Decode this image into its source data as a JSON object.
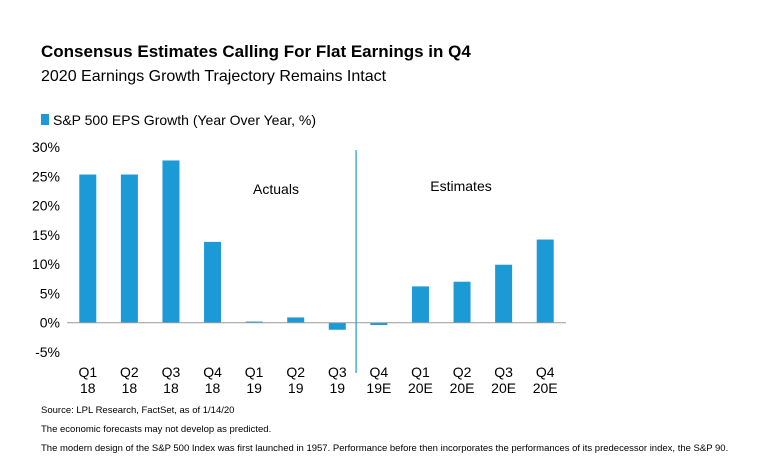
{
  "header": {
    "title": "Consensus Estimates Calling For Flat Earnings in Q4",
    "subtitle": "2020 Earnings Growth Trajectory Remains Intact"
  },
  "chart_data": {
    "type": "bar",
    "categories": [
      [
        "Q1",
        "18"
      ],
      [
        "Q2",
        "18"
      ],
      [
        "Q3",
        "18"
      ],
      [
        "Q4",
        "18"
      ],
      [
        "Q1",
        "19"
      ],
      [
        "Q2",
        "19"
      ],
      [
        "Q3",
        "19"
      ],
      [
        "Q4",
        "19E"
      ],
      [
        "Q1",
        "20E"
      ],
      [
        "Q2",
        "20E"
      ],
      [
        "Q3",
        "20E"
      ],
      [
        "Q4",
        "20E"
      ]
    ],
    "series": [
      {
        "name": "S&P 500 EPS Growth (Year Over Year, %)",
        "values": [
          25.3,
          25.3,
          27.7,
          13.8,
          0.2,
          0.9,
          -1.2,
          -0.4,
          6.2,
          7.0,
          9.9,
          14.2
        ],
        "color": "#1b9ad6"
      }
    ],
    "ylim": [
      -5,
      30
    ],
    "yticks": [
      "-5%",
      "0%",
      "5%",
      "10%",
      "15%",
      "20%",
      "25%",
      "30%"
    ],
    "ytick_values": [
      -5,
      0,
      5,
      10,
      15,
      20,
      25,
      30
    ],
    "grid": false,
    "legend_position": "top-left",
    "annotations": [
      "Actuals",
      "Estimates"
    ],
    "divider_color": "#1b9ad6"
  },
  "footnotes": [
    "Source: LPL Research, FactSet, as of 1/14/20",
    "The economic forecasts may not develop as predicted.",
    "The modern design of the S&P 500 Index was first launched in 1957. Performance before then incorporates the performances of its predecessor index, the S&P 90."
  ]
}
